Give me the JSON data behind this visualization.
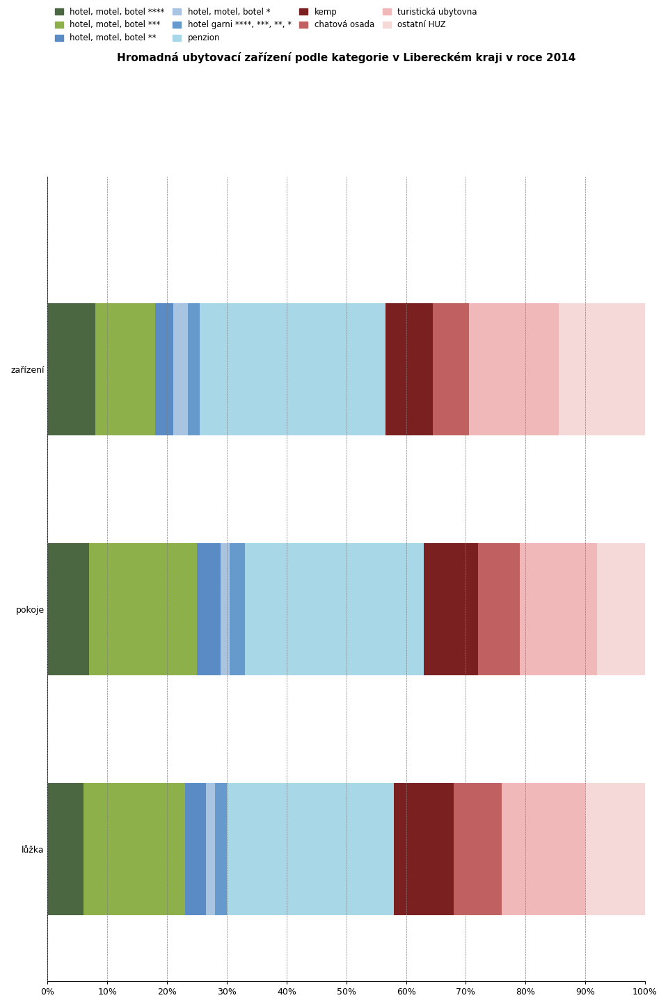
{
  "title": "Hromadná ubytovací zařízení podle kategorie v Libereckém kraji v roce 2014",
  "categories": [
    "zařízení",
    "pokoje",
    "lůžka"
  ],
  "legend_labels": [
    "hotel, motel, botel ****",
    "hotel, motel, botel ***",
    "hotel, motel, botel **",
    "hotel, motel, botel *",
    "hotel garni ****, ***, **, *",
    "penzion",
    "kemp",
    "chatová osada",
    "turistická ubytovna",
    "ostatní HUZ"
  ],
  "colors": [
    "#4a6741",
    "#8db04a",
    "#5b8bc4",
    "#a8c4e0",
    "#6699cc",
    "#a8d8e8",
    "#7b2020",
    "#c06060",
    "#f0b8b8",
    "#f5d8d8"
  ],
  "data": {
    "zařízení": [
      8.0,
      10.0,
      3.0,
      2.5,
      2.0,
      31.0,
      8.0,
      6.0,
      15.0,
      14.5
    ],
    "pokoje": [
      7.0,
      18.0,
      4.0,
      1.5,
      2.5,
      30.0,
      9.0,
      7.0,
      13.0,
      8.0
    ],
    "lůžka": [
      6.0,
      17.0,
      3.5,
      1.5,
      2.0,
      28.0,
      10.0,
      8.0,
      14.0,
      10.0
    ]
  },
  "xlim": [
    0,
    100
  ],
  "xticks": [
    0,
    10,
    20,
    30,
    40,
    50,
    60,
    70,
    80,
    90,
    100
  ],
  "xticklabels": [
    "0%",
    "10%",
    "20%",
    "30%",
    "40%",
    "50%",
    "60%",
    "70%",
    "80%",
    "90%",
    "100%"
  ],
  "title_fontsize": 11,
  "tick_fontsize": 9,
  "legend_fontsize": 8.5,
  "bar_height": 0.55
}
